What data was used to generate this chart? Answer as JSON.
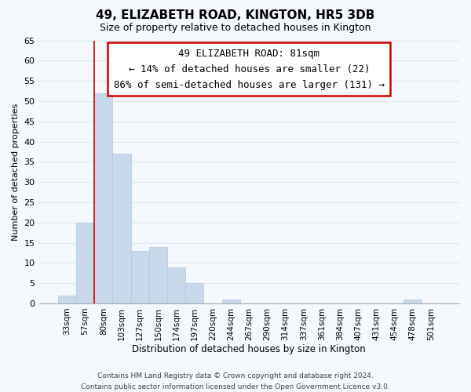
{
  "title": "49, ELIZABETH ROAD, KINGTON, HR5 3DB",
  "subtitle": "Size of property relative to detached houses in Kington",
  "xlabel": "Distribution of detached houses by size in Kington",
  "ylabel": "Number of detached properties",
  "footer_lines": [
    "Contains HM Land Registry data © Crown copyright and database right 2024.",
    "Contains public sector information licensed under the Open Government Licence v3.0."
  ],
  "bin_labels": [
    "33sqm",
    "57sqm",
    "80sqm",
    "103sqm",
    "127sqm",
    "150sqm",
    "174sqm",
    "197sqm",
    "220sqm",
    "244sqm",
    "267sqm",
    "290sqm",
    "314sqm",
    "337sqm",
    "361sqm",
    "384sqm",
    "407sqm",
    "431sqm",
    "454sqm",
    "478sqm",
    "501sqm"
  ],
  "bar_heights": [
    2,
    20,
    52,
    37,
    13,
    14,
    9,
    5,
    0,
    1,
    0,
    0,
    0,
    0,
    0,
    0,
    0,
    0,
    0,
    1,
    0
  ],
  "bar_color": "#c8d9ec",
  "bar_edge_color": "#b0c8e0",
  "highlight_bar_index": 2,
  "highlight_line_color": "#cc0000",
  "ylim": [
    0,
    65
  ],
  "yticks": [
    0,
    5,
    10,
    15,
    20,
    25,
    30,
    35,
    40,
    45,
    50,
    55,
    60,
    65
  ],
  "annotation_title": "49 ELIZABETH ROAD: 81sqm",
  "annotation_line1": "← 14% of detached houses are smaller (22)",
  "annotation_line2": "86% of semi-detached houses are larger (131) →",
  "grid_color": "#dde8f0",
  "bg_color": "#f5f8fc",
  "title_fontsize": 11,
  "subtitle_fontsize": 9,
  "annotation_fontsize": 9,
  "tick_fontsize": 7.5,
  "ytick_fontsize": 8,
  "xlabel_fontsize": 8.5,
  "ylabel_fontsize": 8,
  "footer_fontsize": 6.5
}
